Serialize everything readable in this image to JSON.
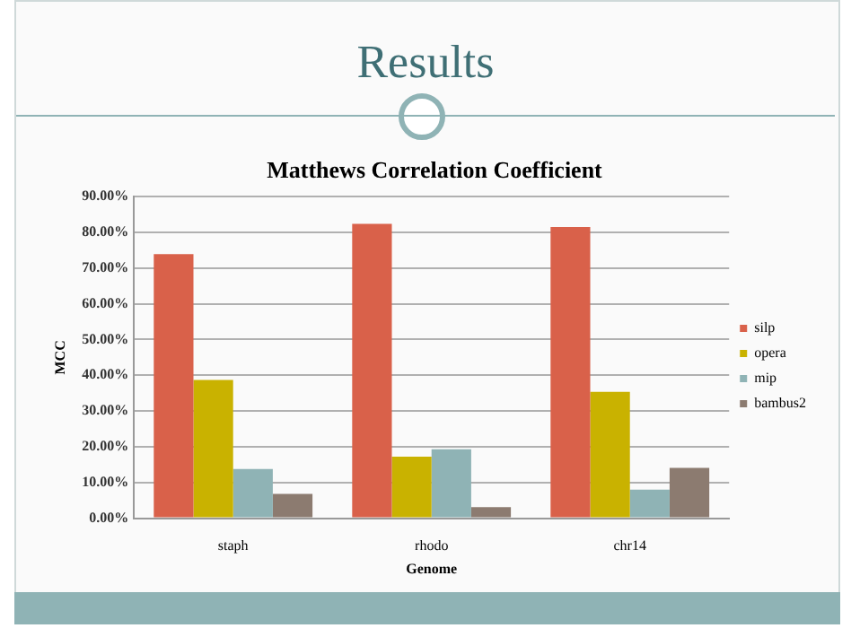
{
  "chart_data": {
    "type": "bar",
    "title": "Matthews Correlation Coefficient",
    "xlabel": "Genome",
    "ylabel": "MCC",
    "categories": [
      "staph",
      "rhodo",
      "chr14"
    ],
    "series": [
      {
        "name": "silp",
        "color": "#d9614a",
        "values": [
          73.9,
          82.4,
          81.5
        ]
      },
      {
        "name": "opera",
        "color": "#c9b200",
        "values": [
          38.7,
          17.2,
          35.4
        ]
      },
      {
        "name": "mip",
        "color": "#8fb3b5",
        "values": [
          13.8,
          19.3,
          8.0
        ]
      },
      {
        "name": "bambus2",
        "color": "#8c7b70",
        "values": [
          6.8,
          3.1,
          14.1
        ]
      }
    ],
    "ylim": [
      0,
      90
    ],
    "yticks": [
      {
        "value": 0,
        "label": "0.00%"
      },
      {
        "value": 10,
        "label": "10.00%"
      },
      {
        "value": 20,
        "label": "20.00%"
      },
      {
        "value": 30,
        "label": "30.00%"
      },
      {
        "value": 40,
        "label": "40.00%"
      },
      {
        "value": 50,
        "label": "50.00%"
      },
      {
        "value": 60,
        "label": "60.00%"
      },
      {
        "value": 70,
        "label": "70.00%"
      },
      {
        "value": 80,
        "label": "80.00%"
      },
      {
        "value": 90,
        "label": "90.00%"
      }
    ],
    "grid": "y",
    "legend": "right",
    "annotations": [
      "Results"
    ]
  }
}
